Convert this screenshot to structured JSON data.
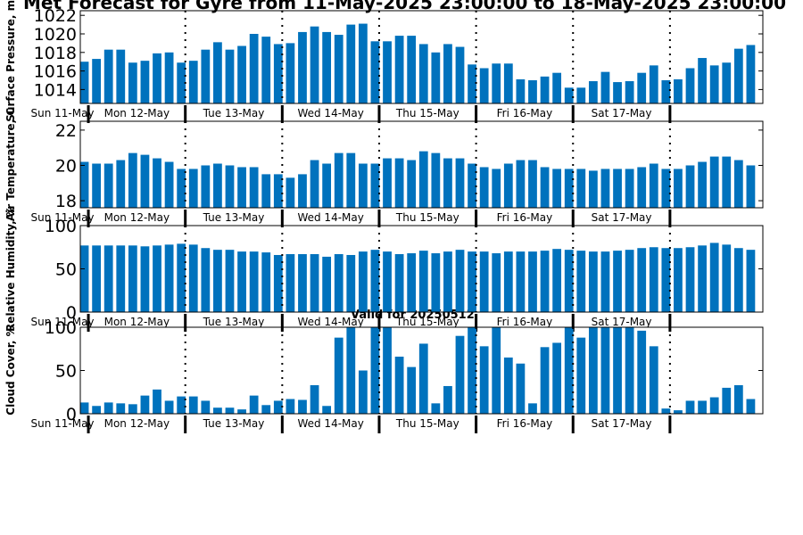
{
  "title": "Met Forecast for Gyre from 11-May-2025 23:00:00 to 18-May-2025 23:00:00",
  "subtitle": "Valid for 20250512",
  "colors": {
    "bar": "#0072bd",
    "axis": "#000000",
    "background": "#ffffff"
  },
  "day_labels": [
    "Mon 12-May",
    "Tue 13-May",
    "Wed 14-May",
    "Thu 15-May",
    "Fri 16-May",
    "Sat 17-May"
  ],
  "start_label": "Sun 11-May",
  "chart_data": [
    {
      "type": "bar",
      "title": "",
      "ylabel": "Surface Pressure, mb",
      "ylim": [
        1012.5,
        1022.5
      ],
      "yticks": [
        1014,
        1016,
        1018,
        1020,
        1022
      ],
      "grid": false,
      "x_unit": "hours from 11-May-2025 23:00",
      "day_boundaries": [
        1,
        25,
        49,
        73,
        97,
        121,
        145
      ],
      "values": [
        1017.0,
        1017.3,
        1018.3,
        1018.3,
        1016.9,
        1017.1,
        1017.9,
        1018.0,
        1016.9,
        1017.1,
        1018.3,
        1019.1,
        1018.3,
        1018.7,
        1020.0,
        1019.7,
        1018.9,
        1019.0,
        1020.2,
        1020.8,
        1020.2,
        1019.9,
        1021.0,
        1021.1,
        1019.2,
        1019.2,
        1019.8,
        1019.8,
        1018.9,
        1018.0,
        1018.9,
        1018.6,
        1016.7,
        1016.3,
        1016.8,
        1016.8,
        1015.1,
        1015.0,
        1015.4,
        1015.8,
        1014.2,
        1014.2,
        1014.9,
        1015.9,
        1014.8,
        1014.9,
        1015.8,
        1016.6,
        1015.0,
        1015.1,
        1016.3,
        1017.4,
        1016.6,
        1016.9,
        1018.4,
        1018.8
      ]
    },
    {
      "type": "bar",
      "title": "",
      "ylabel": "Air Temperature, C",
      "ylim": [
        17.6,
        22.5
      ],
      "yticks": [
        18,
        20,
        22
      ],
      "grid": false,
      "x_unit": "hours from 11-May-2025 23:00",
      "day_boundaries": [
        1,
        25,
        49,
        73,
        97,
        121,
        145
      ],
      "values": [
        20.2,
        20.1,
        20.1,
        20.3,
        20.7,
        20.6,
        20.4,
        20.2,
        19.8,
        19.8,
        20.0,
        20.1,
        20.0,
        19.9,
        19.9,
        19.5,
        19.5,
        19.3,
        19.5,
        20.3,
        20.1,
        20.7,
        20.7,
        20.1,
        20.1,
        20.4,
        20.4,
        20.3,
        20.8,
        20.7,
        20.4,
        20.4,
        20.1,
        19.9,
        19.8,
        20.1,
        20.3,
        20.3,
        19.9,
        19.8,
        19.8,
        19.8,
        19.7,
        19.8,
        19.8,
        19.8,
        19.9,
        20.1,
        19.8,
        19.8,
        20.0,
        20.2,
        20.5,
        20.5,
        20.3,
        20.0
      ]
    },
    {
      "type": "bar",
      "title": "",
      "ylabel": "Relative Humidity, %",
      "ylim": [
        0,
        100
      ],
      "yticks": [
        0,
        50,
        100
      ],
      "grid": false,
      "x_unit": "hours from 11-May-2025 23:00",
      "day_boundaries": [
        1,
        25,
        49,
        73,
        97,
        121,
        145
      ],
      "values": [
        77,
        77,
        77,
        77,
        77,
        76,
        77,
        78,
        79,
        78,
        74,
        72,
        72,
        70,
        70,
        69,
        66,
        67,
        67,
        67,
        64,
        67,
        66,
        70,
        72,
        70,
        67,
        68,
        71,
        68,
        70,
        72,
        70,
        70,
        68,
        70,
        70,
        70,
        71,
        73,
        72,
        71,
        70,
        70,
        71,
        72,
        74,
        75,
        74,
        74,
        75,
        77,
        80,
        78,
        74,
        72
      ]
    },
    {
      "type": "bar",
      "title": "Valid for 20250512",
      "ylabel": "Cloud Cover, %",
      "ylim": [
        0,
        100
      ],
      "yticks": [
        0,
        50,
        100
      ],
      "grid": false,
      "x_unit": "hours from 11-May-2025 23:00",
      "day_boundaries": [
        1,
        25,
        49,
        73,
        97,
        121,
        145
      ],
      "values": [
        13,
        9,
        13,
        12,
        11,
        21,
        28,
        15,
        20,
        20,
        15,
        7,
        7,
        5,
        21,
        10,
        15,
        17,
        16,
        33,
        9,
        88,
        100,
        50,
        100,
        100,
        66,
        54,
        81,
        12,
        32,
        90,
        100,
        78,
        100,
        65,
        58,
        12,
        77,
        82,
        100,
        88,
        100,
        100,
        100,
        100,
        96,
        78,
        6,
        4,
        15,
        15,
        19,
        30,
        33,
        17
      ]
    }
  ]
}
